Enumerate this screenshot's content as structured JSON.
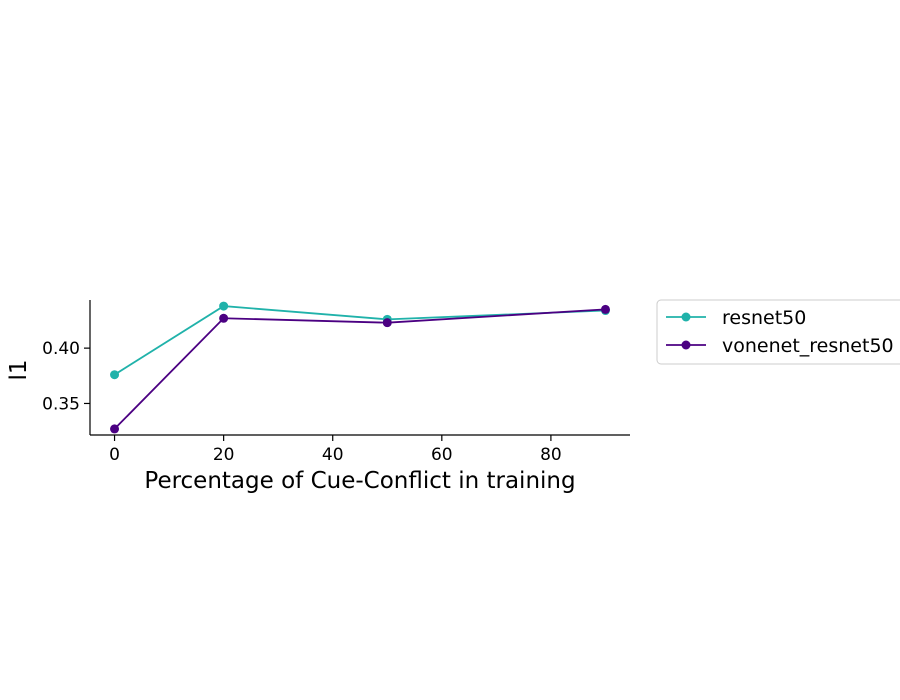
{
  "chart_data": {
    "type": "line",
    "xlabel": "Percentage of Cue-Conflict in training",
    "ylabel": "l1",
    "x": [
      0,
      20,
      50,
      90
    ],
    "xlim": [
      -4.5,
      94.5
    ],
    "ylim": [
      0.3215,
      0.4435
    ],
    "xticks": [
      0,
      20,
      40,
      60,
      80
    ],
    "yticks": [
      0.35,
      0.4
    ],
    "xtick_labels": [
      "0",
      "20",
      "40",
      "60",
      "80"
    ],
    "ytick_labels": [
      "0.35",
      "0.40"
    ],
    "grid": false,
    "legend_position": "outside-right",
    "series": [
      {
        "name": "resnet50",
        "color": "#20b2aa",
        "values": [
          0.376,
          0.438,
          0.426,
          0.434
        ]
      },
      {
        "name": "vonenet_resnet50",
        "color": "#4b0082",
        "values": [
          0.327,
          0.427,
          0.423,
          0.435
        ]
      }
    ]
  }
}
